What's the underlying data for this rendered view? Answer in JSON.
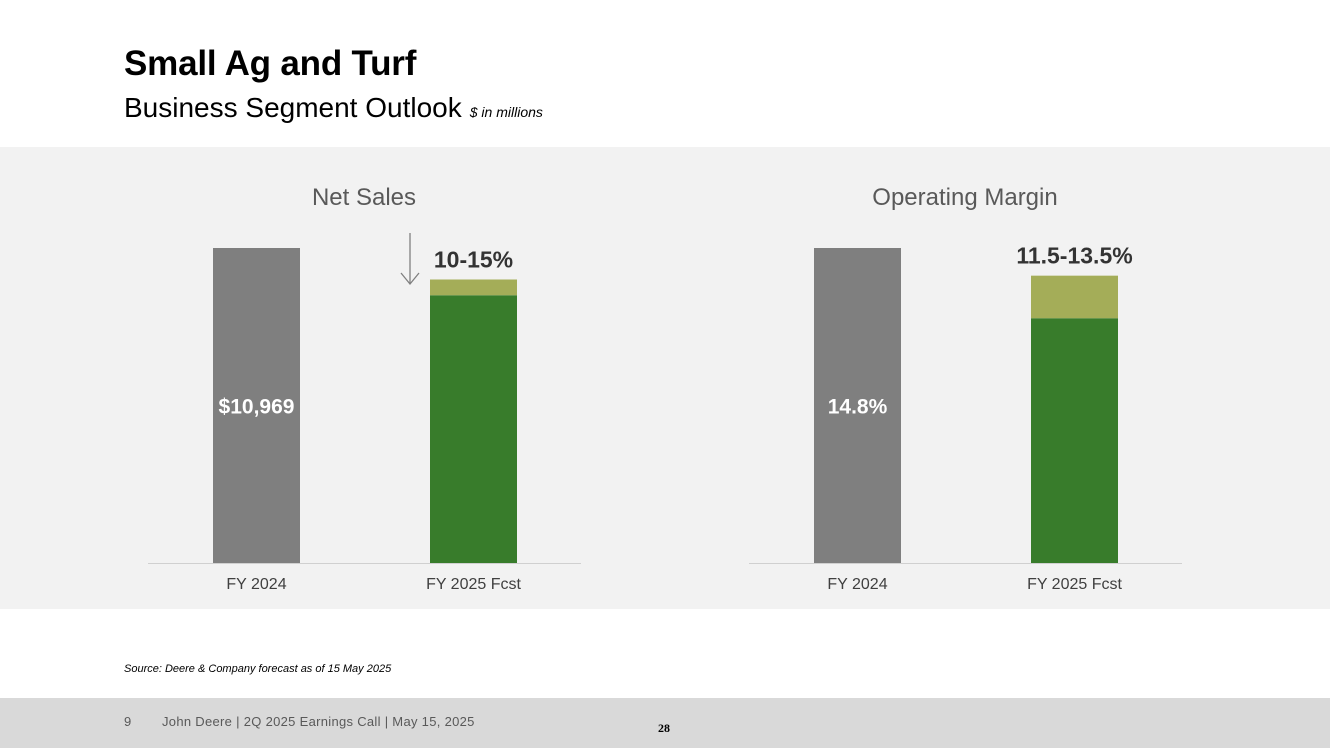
{
  "slide": {
    "title": "Small Ag and Turf",
    "subtitle": "Business Segment Outlook",
    "units": "$ in millions",
    "source": "Source: Deere & Company forecast as of 15 May 2025"
  },
  "footer": {
    "page_number": "9",
    "text": "John Deere | 2Q 2025 Earnings Call | May 15, 2025",
    "mark": "28"
  },
  "colors": {
    "actual": "#7f7f7f",
    "forecast_low": "#387c2b",
    "forecast_range": "#a4ad58",
    "panel": "#f2f2f2",
    "label_dark": "#333333"
  },
  "chart_data": [
    {
      "type": "bar",
      "title": "Net Sales",
      "categories": [
        "FY 2024",
        "FY 2025 Fcst"
      ],
      "values": [
        10969,
        null
      ],
      "value_labels": [
        "$10,969",
        ""
      ],
      "forecast_change": {
        "range_label": "10-15%",
        "direction": "down",
        "low_pct": -15,
        "high_pct": -10
      },
      "grid": false,
      "legend": "none"
    },
    {
      "type": "bar",
      "title": "Operating Margin",
      "categories": [
        "FY 2024",
        "FY 2025 Fcst"
      ],
      "values": [
        14.8,
        null
      ],
      "value_labels": [
        "14.8%",
        ""
      ],
      "forecast_range": {
        "range_label": "11.5-13.5%",
        "low": 11.5,
        "high": 13.5
      },
      "grid": false,
      "legend": "none"
    }
  ]
}
